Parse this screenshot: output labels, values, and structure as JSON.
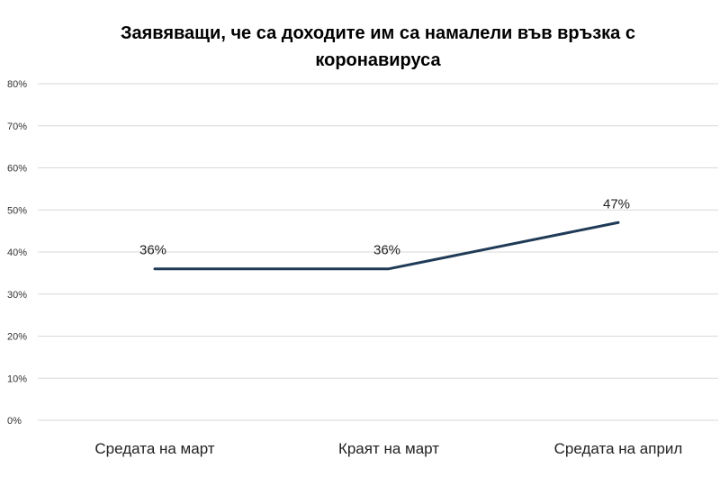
{
  "chart_data": {
    "type": "line",
    "title_lines": [
      "Заявяващи,  че са доходите им са намалели във връзка с",
      "коронавируса"
    ],
    "categories": [
      "Средата на март",
      "Краят на март",
      "Средата на април"
    ],
    "series": [
      {
        "name": "Заявяващи, че са доходите им са намалели",
        "values": [
          36,
          36,
          47
        ],
        "labels": [
          "36%",
          "36%",
          "47%"
        ],
        "color": "#1f3b57"
      }
    ],
    "ylim": [
      0,
      80
    ],
    "yticks": [
      0,
      10,
      20,
      30,
      40,
      50,
      60,
      70,
      80
    ],
    "ytick_labels": [
      "0%",
      "10%",
      "20%",
      "30%",
      "40%",
      "50%",
      "60%",
      "70%",
      "80%"
    ],
    "grid": true,
    "legend": "none",
    "xlabel": "",
    "ylabel": ""
  },
  "colors": {
    "line": "#1f3b57",
    "grid": "#d9d9d9",
    "text": "#222222"
  }
}
